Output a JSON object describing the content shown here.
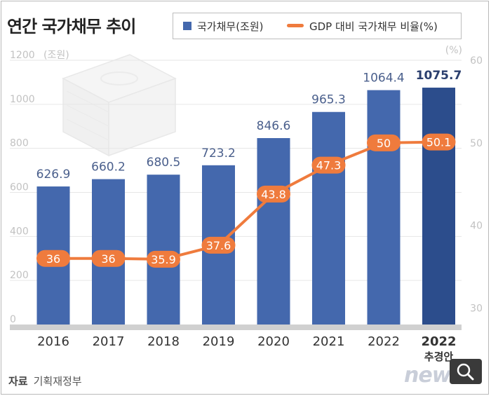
{
  "title": "연간 국가채무 추이",
  "legend": {
    "bar": "국가채무(조원)",
    "line": "GDP 대비 국가채무 비율(%)"
  },
  "source": {
    "label": "자료",
    "value": "기획재정부"
  },
  "watermark": "news1",
  "colors": {
    "bar": "#4468ad",
    "bar_highlight": "#2c4d8c",
    "line": "#ef7b3d",
    "grid": "#e6e6e6",
    "tick": "#c2c2c2",
    "value_label": "#4a5f8c"
  },
  "chart_data": {
    "type": "bar",
    "title": "연간 국가채무 추이",
    "categories": [
      "2016",
      "2017",
      "2018",
      "2019",
      "2020",
      "2021",
      "2022",
      "2022"
    ],
    "category_sublabels": [
      "",
      "",
      "",
      "",
      "",
      "",
      "",
      "추경안"
    ],
    "series": [
      {
        "name": "국가채무(조원)",
        "type": "bar",
        "axis": "left",
        "values": [
          626.9,
          660.2,
          680.5,
          723.2,
          846.6,
          965.3,
          1064.4,
          1075.7
        ]
      },
      {
        "name": "GDP 대비 국가채무 비율(%)",
        "type": "line",
        "axis": "right",
        "values": [
          36,
          36,
          35.9,
          37.6,
          43.8,
          47.3,
          50,
          50.1
        ]
      }
    ],
    "bar_labels": [
      "626.9",
      "660.2",
      "680.5",
      "723.2",
      "846.6",
      "965.3",
      "1064.4",
      "1075.7"
    ],
    "line_labels": [
      "36",
      "36",
      "35.9",
      "37.6",
      "43.8",
      "47.3",
      "50",
      "50.1"
    ],
    "y_left": {
      "label": "(조원)",
      "ticks": [
        "0",
        "200",
        "400",
        "600",
        "800",
        "1000",
        "1200"
      ],
      "ylim": [
        0,
        1200
      ]
    },
    "y_right": {
      "label": "(%)",
      "ticks": [
        "30",
        "40",
        "50",
        "60"
      ],
      "ylim": [
        28,
        60
      ]
    },
    "highlight_index": 7,
    "grid": true
  }
}
